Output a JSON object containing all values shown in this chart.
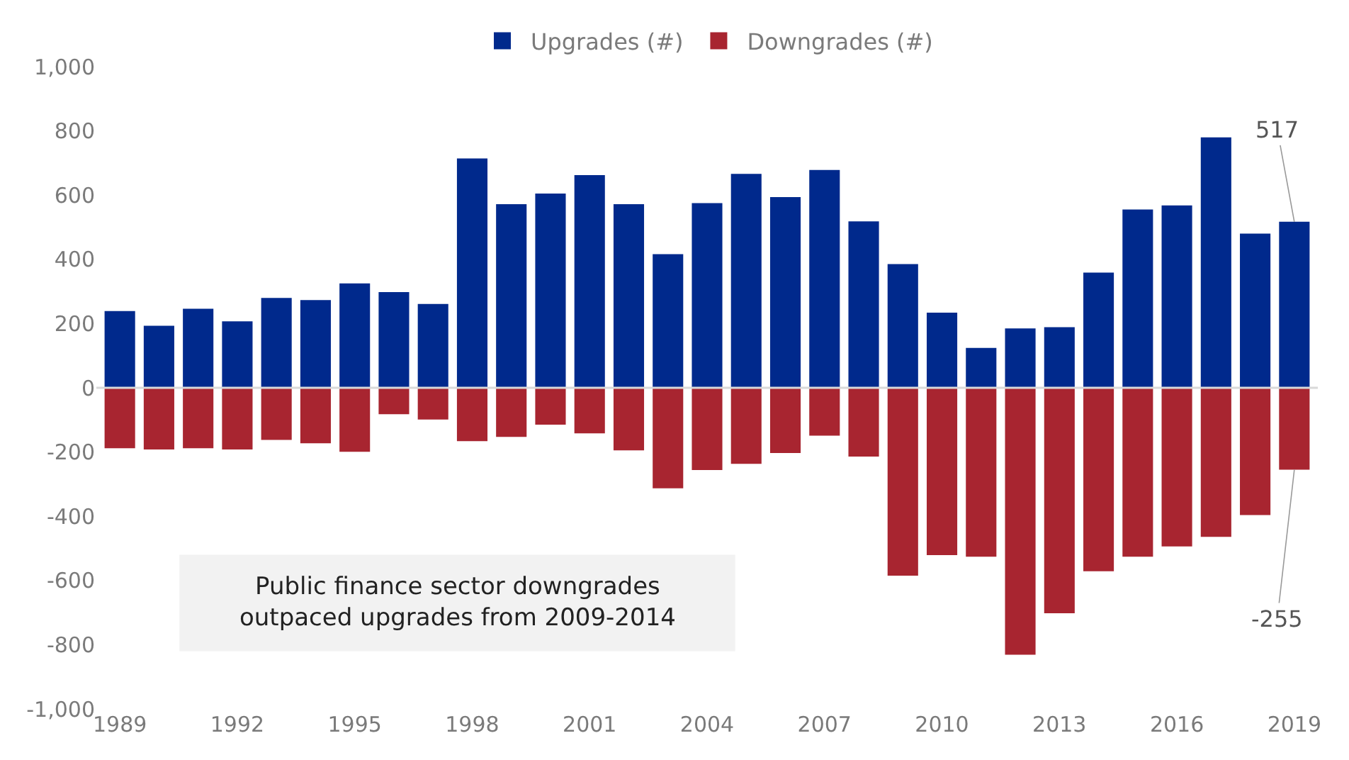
{
  "chart_data": {
    "type": "bar",
    "stacked": true,
    "categories": [
      "1989",
      null,
      null,
      "1992",
      null,
      null,
      "1995",
      null,
      null,
      "1998",
      null,
      null,
      "2001",
      null,
      null,
      "2004",
      null,
      null,
      "2007",
      null,
      null,
      "2010",
      null,
      null,
      "2013",
      null,
      null,
      "2016",
      null,
      null,
      "2019"
    ],
    "series": [
      {
        "name": "Upgrades (#)",
        "color": "#00298c",
        "values": [
          239,
          193,
          246,
          207,
          280,
          273,
          325,
          298,
          261,
          714,
          572,
          605,
          662,
          572,
          416,
          575,
          666,
          594,
          678,
          518,
          385,
          234,
          124,
          185,
          189,
          359,
          555,
          568,
          780,
          480,
          517
        ]
      },
      {
        "name": "Downgrades (#)",
        "color": "#a82530",
        "values": [
          -188,
          -192,
          -188,
          -192,
          -162,
          -173,
          -199,
          -82,
          -99,
          -166,
          -153,
          -115,
          -142,
          -195,
          -313,
          -256,
          -237,
          -203,
          -149,
          -214,
          -585,
          -521,
          -526,
          -831,
          -702,
          -571,
          -526,
          -494,
          -464,
          -396,
          -255
        ]
      }
    ],
    "ylim": [
      -1000,
      1000
    ],
    "yticks": [
      {
        "value": -1000,
        "label": "-1,000"
      },
      -800,
      -600,
      -400,
      -200,
      0,
      200,
      400,
      600,
      800,
      {
        "value": 1000,
        "label": "1,000"
      }
    ],
    "grid": false,
    "ref_lines": [
      {
        "axis": "y",
        "value": 0,
        "color": "#d9d9d9"
      }
    ],
    "legend": "top",
    "annotations": [
      {
        "text": "517",
        "x": "2019",
        "y": 517
      },
      {
        "text": "-255",
        "x": "2019",
        "y": -255
      },
      "Public finance sector downgrades\noutpaced upgrades from 2009-2014"
    ]
  }
}
